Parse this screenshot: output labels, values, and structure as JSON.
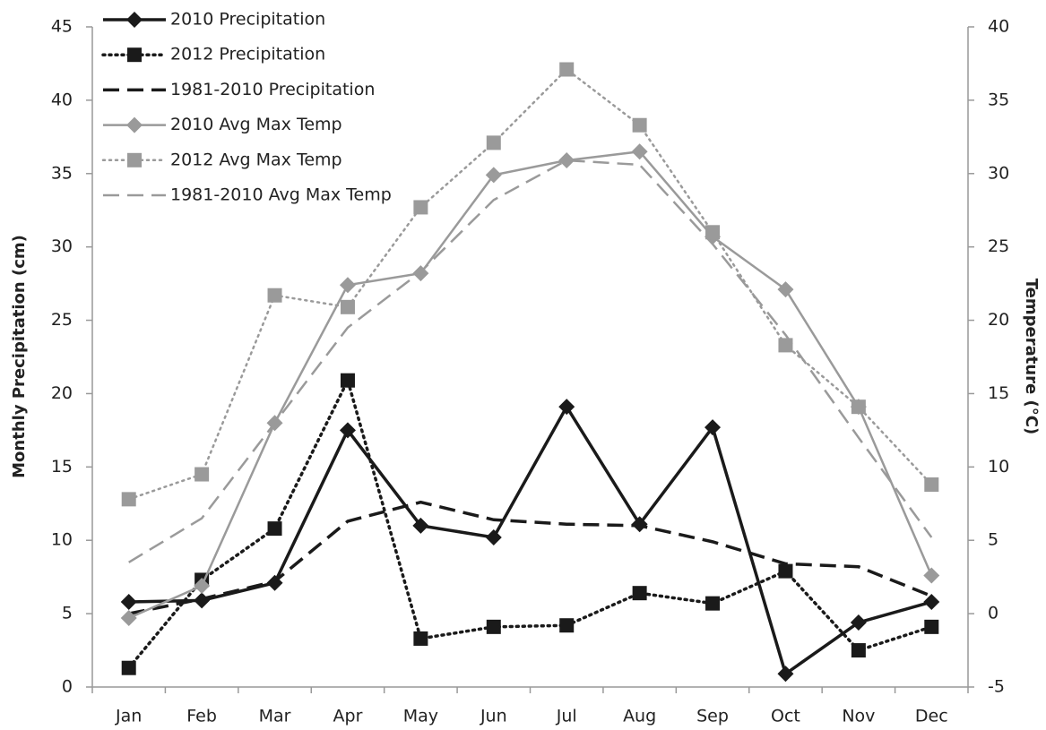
{
  "chart_data": {
    "type": "line",
    "categories": [
      "Jan",
      "Feb",
      "Mar",
      "Apr",
      "May",
      "Jun",
      "Jul",
      "Aug",
      "Sep",
      "Oct",
      "Nov",
      "Dec"
    ],
    "y_label": "Monthly Precipitation (cm)",
    "y2_label": "Temperature (°C)",
    "ylim": [
      0,
      45
    ],
    "yticks": [
      0,
      5,
      10,
      15,
      20,
      25,
      30,
      35,
      40,
      45
    ],
    "y2lim": [
      -5,
      40
    ],
    "y2ticks": [
      -5,
      0,
      5,
      10,
      15,
      20,
      25,
      30,
      35,
      40
    ],
    "legend": "upper left",
    "series": [
      {
        "name": "2010 Precipitation",
        "color": "#1a1a1a",
        "line_style": "solid",
        "marker": "diamond",
        "values": [
          5.8,
          5.9,
          7.1,
          17.5,
          11.0,
          10.2,
          19.1,
          11.1,
          17.7,
          0.9,
          4.4,
          5.8
        ]
      },
      {
        "name": "2012 Precipitation",
        "color": "#1a1a1a",
        "line_style": "dotted",
        "marker": "square",
        "values": [
          1.3,
          7.3,
          10.8,
          20.9,
          3.3,
          4.1,
          4.2,
          6.4,
          5.7,
          7.9,
          2.5,
          4.1
        ]
      },
      {
        "name": "1981-2010 Precipitation",
        "color": "#1a1a1a",
        "line_style": "dashed",
        "values": [
          5.0,
          6.0,
          7.2,
          11.3,
          12.6,
          11.4,
          11.1,
          11.0,
          9.9,
          8.4,
          8.2,
          6.2
        ]
      },
      {
        "name": "2010 Avg Max Temp",
        "color": "#9a9a9a",
        "line_style": "solid",
        "marker": "diamond",
        "axis": "y2",
        "values": [
          -0.3,
          1.9,
          13.0,
          22.4,
          23.2,
          29.9,
          30.9,
          31.5,
          25.7,
          22.1,
          14.1,
          2.6
        ]
      },
      {
        "name": "2012 Avg Max Temp",
        "color": "#9a9a9a",
        "line_style": "dotted",
        "marker": "square",
        "axis": "y2",
        "values": [
          7.8,
          9.5,
          21.7,
          20.9,
          27.7,
          32.1,
          37.1,
          33.3,
          26.0,
          18.3,
          14.1,
          8.8
        ]
      },
      {
        "name": "1981-2010 Avg Max Temp",
        "color": "#9a9a9a",
        "line_style": "dashed",
        "axis": "y2",
        "values": [
          3.5,
          6.5,
          13.0,
          19.5,
          23.3,
          28.2,
          30.9,
          30.6,
          25.2,
          19.0,
          12.0,
          5.2
        ]
      }
    ]
  }
}
